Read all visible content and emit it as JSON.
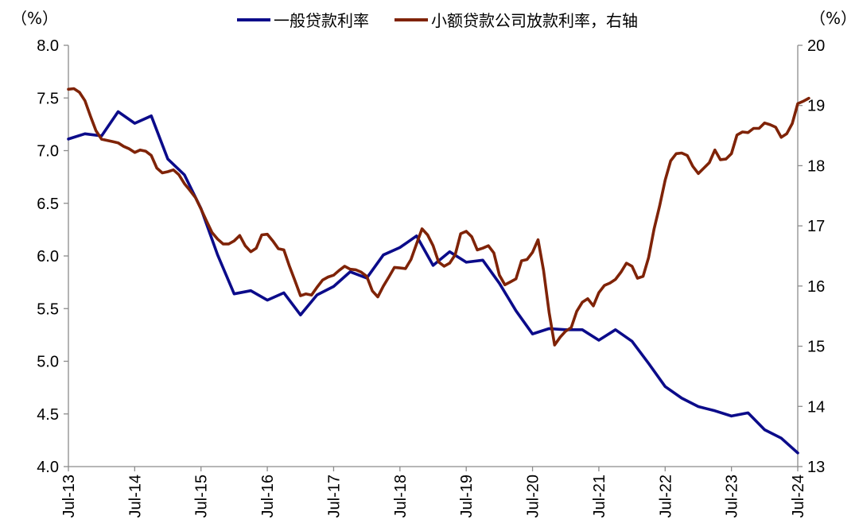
{
  "chart_data": {
    "type": "line",
    "title": "",
    "left_axis": {
      "unit": "（%）",
      "range": [
        4.0,
        8.0
      ],
      "ticks": [
        "4.0",
        "4.5",
        "5.0",
        "5.5",
        "6.0",
        "6.5",
        "7.0",
        "7.5",
        "8.0"
      ]
    },
    "right_axis": {
      "unit": "（%）",
      "range": [
        13,
        20
      ],
      "ticks": [
        "13",
        "14",
        "15",
        "16",
        "17",
        "18",
        "19",
        "20"
      ]
    },
    "x_ticks": [
      "Jul-13",
      "Jul-14",
      "Jul-15",
      "Jul-16",
      "Jul-17",
      "Jul-18",
      "Jul-19",
      "Jul-20",
      "Jul-21",
      "Jul-22",
      "Jul-23",
      "Jul-24"
    ],
    "legend_position": "top-center",
    "grid": false,
    "series": [
      {
        "name": "一般贷款利率",
        "axis": "left",
        "color": "#0b0b8a",
        "points": [
          [
            "2013-07",
            7.11
          ],
          [
            "2013-10",
            7.16
          ],
          [
            "2014-01",
            7.14
          ],
          [
            "2014-04",
            7.37
          ],
          [
            "2014-07",
            7.26
          ],
          [
            "2014-10",
            7.33
          ],
          [
            "2015-01",
            6.92
          ],
          [
            "2015-04",
            6.77
          ],
          [
            "2015-07",
            6.45
          ],
          [
            "2015-10",
            6.01
          ],
          [
            "2016-01",
            5.64
          ],
          [
            "2016-04",
            5.67
          ],
          [
            "2016-07",
            5.58
          ],
          [
            "2016-10",
            5.65
          ],
          [
            "2017-01",
            5.44
          ],
          [
            "2017-04",
            5.63
          ],
          [
            "2017-07",
            5.71
          ],
          [
            "2017-10",
            5.85
          ],
          [
            "2018-01",
            5.79
          ],
          [
            "2018-04",
            6.01
          ],
          [
            "2018-07",
            6.08
          ],
          [
            "2018-10",
            6.19
          ],
          [
            "2019-01",
            5.91
          ],
          [
            "2019-04",
            6.04
          ],
          [
            "2019-07",
            5.94
          ],
          [
            "2019-10",
            5.96
          ],
          [
            "2020-01",
            5.74
          ],
          [
            "2020-04",
            5.48
          ],
          [
            "2020-07",
            5.26
          ],
          [
            "2020-10",
            5.31
          ],
          [
            "2021-01",
            5.3
          ],
          [
            "2021-04",
            5.3
          ],
          [
            "2021-07",
            5.2
          ],
          [
            "2021-10",
            5.3
          ],
          [
            "2022-01",
            5.19
          ],
          [
            "2022-04",
            4.98
          ],
          [
            "2022-07",
            4.76
          ],
          [
            "2022-10",
            4.65
          ],
          [
            "2023-01",
            4.57
          ],
          [
            "2023-04",
            4.53
          ],
          [
            "2023-07",
            4.48
          ],
          [
            "2023-10",
            4.51
          ],
          [
            "2024-01",
            4.35
          ],
          [
            "2024-04",
            4.27
          ],
          [
            "2024-07",
            4.13
          ]
        ]
      },
      {
        "name": "小额贷款公司放款利率，右轴",
        "axis": "right",
        "color": "#7f2307",
        "points": [
          [
            "2013-07",
            19.27
          ],
          [
            "2013-08",
            19.28
          ],
          [
            "2013-09",
            19.22
          ],
          [
            "2013-10",
            19.08
          ],
          [
            "2013-11",
            18.82
          ],
          [
            "2013-12",
            18.58
          ],
          [
            "2014-01",
            18.44
          ],
          [
            "2014-02",
            18.42
          ],
          [
            "2014-03",
            18.4
          ],
          [
            "2014-04",
            18.38
          ],
          [
            "2014-05",
            18.32
          ],
          [
            "2014-06",
            18.28
          ],
          [
            "2014-07",
            18.22
          ],
          [
            "2014-08",
            18.26
          ],
          [
            "2014-09",
            18.24
          ],
          [
            "2014-10",
            18.17
          ],
          [
            "2014-11",
            17.96
          ],
          [
            "2014-12",
            17.88
          ],
          [
            "2015-01",
            17.9
          ],
          [
            "2015-02",
            17.93
          ],
          [
            "2015-03",
            17.85
          ],
          [
            "2015-04",
            17.7
          ],
          [
            "2015-05",
            17.59
          ],
          [
            "2015-06",
            17.47
          ],
          [
            "2015-07",
            17.28
          ],
          [
            "2015-08",
            17.08
          ],
          [
            "2015-09",
            16.89
          ],
          [
            "2015-10",
            16.78
          ],
          [
            "2015-11",
            16.7
          ],
          [
            "2015-12",
            16.7
          ],
          [
            "2016-01",
            16.75
          ],
          [
            "2016-02",
            16.84
          ],
          [
            "2016-03",
            16.67
          ],
          [
            "2016-04",
            16.57
          ],
          [
            "2016-05",
            16.63
          ],
          [
            "2016-06",
            16.85
          ],
          [
            "2016-07",
            16.86
          ],
          [
            "2016-08",
            16.75
          ],
          [
            "2016-09",
            16.62
          ],
          [
            "2016-10",
            16.6
          ],
          [
            "2016-11",
            16.33
          ],
          [
            "2016-12",
            16.09
          ],
          [
            "2017-01",
            15.84
          ],
          [
            "2017-02",
            15.87
          ],
          [
            "2017-03",
            15.85
          ],
          [
            "2017-04",
            15.98
          ],
          [
            "2017-05",
            16.1
          ],
          [
            "2017-06",
            16.15
          ],
          [
            "2017-07",
            16.18
          ],
          [
            "2017-08",
            16.26
          ],
          [
            "2017-09",
            16.33
          ],
          [
            "2017-10",
            16.28
          ],
          [
            "2017-11",
            16.27
          ],
          [
            "2017-12",
            16.23
          ],
          [
            "2018-01",
            16.16
          ],
          [
            "2018-02",
            15.92
          ],
          [
            "2018-03",
            15.82
          ],
          [
            "2018-04",
            16.0
          ],
          [
            "2018-05",
            16.15
          ],
          [
            "2018-06",
            16.31
          ],
          [
            "2018-07",
            16.3
          ],
          [
            "2018-08",
            16.29
          ],
          [
            "2018-09",
            16.44
          ],
          [
            "2018-10",
            16.7
          ],
          [
            "2018-11",
            16.95
          ],
          [
            "2018-12",
            16.85
          ],
          [
            "2019-01",
            16.67
          ],
          [
            "2019-02",
            16.4
          ],
          [
            "2019-03",
            16.33
          ],
          [
            "2019-04",
            16.38
          ],
          [
            "2019-05",
            16.52
          ],
          [
            "2019-06",
            16.87
          ],
          [
            "2019-07",
            16.91
          ],
          [
            "2019-08",
            16.82
          ],
          [
            "2019-09",
            16.6
          ],
          [
            "2019-10",
            16.63
          ],
          [
            "2019-11",
            16.67
          ],
          [
            "2019-12",
            16.55
          ],
          [
            "2020-01",
            16.18
          ],
          [
            "2020-02",
            16.02
          ],
          [
            "2020-03",
            16.07
          ],
          [
            "2020-04",
            16.12
          ],
          [
            "2020-05",
            16.42
          ],
          [
            "2020-06",
            16.44
          ],
          [
            "2020-07",
            16.56
          ],
          [
            "2020-08",
            16.77
          ],
          [
            "2020-09",
            16.26
          ],
          [
            "2020-10",
            15.56
          ],
          [
            "2020-11",
            15.02
          ],
          [
            "2020-12",
            15.15
          ],
          [
            "2021-01",
            15.25
          ],
          [
            "2021-02",
            15.31
          ],
          [
            "2021-03",
            15.58
          ],
          [
            "2021-04",
            15.73
          ],
          [
            "2021-05",
            15.79
          ],
          [
            "2021-06",
            15.67
          ],
          [
            "2021-07",
            15.89
          ],
          [
            "2021-08",
            16.01
          ],
          [
            "2021-09",
            16.05
          ],
          [
            "2021-10",
            16.11
          ],
          [
            "2021-11",
            16.23
          ],
          [
            "2021-12",
            16.38
          ],
          [
            "2022-01",
            16.33
          ],
          [
            "2022-02",
            16.13
          ],
          [
            "2022-03",
            16.16
          ],
          [
            "2022-04",
            16.47
          ],
          [
            "2022-05",
            16.95
          ],
          [
            "2022-06",
            17.33
          ],
          [
            "2022-07",
            17.76
          ],
          [
            "2022-08",
            18.08
          ],
          [
            "2022-09",
            18.2
          ],
          [
            "2022-10",
            18.21
          ],
          [
            "2022-11",
            18.17
          ],
          [
            "2022-12",
            17.99
          ],
          [
            "2023-01",
            17.87
          ],
          [
            "2023-02",
            17.96
          ],
          [
            "2023-03",
            18.05
          ],
          [
            "2023-04",
            18.26
          ],
          [
            "2023-05",
            18.1
          ],
          [
            "2023-06",
            18.11
          ],
          [
            "2023-07",
            18.2
          ],
          [
            "2023-08",
            18.51
          ],
          [
            "2023-09",
            18.56
          ],
          [
            "2023-10",
            18.55
          ],
          [
            "2023-11",
            18.62
          ],
          [
            "2023-12",
            18.62
          ],
          [
            "2024-01",
            18.71
          ],
          [
            "2024-02",
            18.68
          ],
          [
            "2024-03",
            18.64
          ],
          [
            "2024-04",
            18.47
          ],
          [
            "2024-05",
            18.53
          ],
          [
            "2024-06",
            18.7
          ],
          [
            "2024-07",
            19.03
          ],
          [
            "2024-08",
            19.07
          ],
          [
            "2024-09",
            19.12
          ]
        ]
      }
    ]
  }
}
